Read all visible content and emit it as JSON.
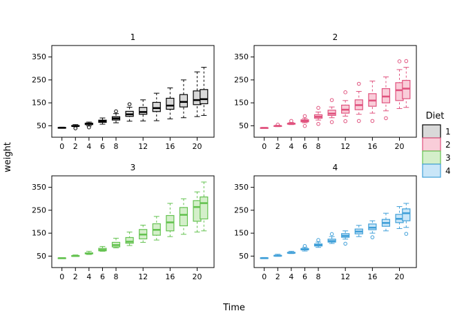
{
  "chart_data": {
    "type": "boxplot",
    "title": "",
    "xlabel": "Time",
    "ylabel": "weight",
    "x_ticks": [
      0,
      2,
      4,
      6,
      8,
      12,
      16,
      20
    ],
    "y_ticks": [
      50,
      150,
      250,
      350
    ],
    "xlim": [
      -1.5,
      22.5
    ],
    "ylim": [
      0,
      400
    ],
    "times": [
      0,
      2,
      4,
      6,
      8,
      10,
      12,
      14,
      16,
      18,
      20,
      21
    ],
    "legend": {
      "title": "Diet",
      "entries": [
        {
          "label": "1",
          "fill": "#d9d9d9",
          "stroke": "#000000"
        },
        {
          "label": "2",
          "fill": "#f9cdd9",
          "stroke": "#e0527e"
        },
        {
          "label": "3",
          "fill": "#d4efca",
          "stroke": "#64c250"
        },
        {
          "label": "4",
          "fill": "#c9e6f8",
          "stroke": "#3f9fd8"
        }
      ]
    },
    "panels": [
      {
        "label": "1",
        "diet": "1",
        "fill": "#d9d9d9",
        "stroke": "#000000",
        "boxes": [
          {
            "t": 0,
            "lo": 39,
            "q1": 40.5,
            "med": 41,
            "q3": 42.5,
            "hi": 44,
            "out": []
          },
          {
            "t": 2,
            "lo": 46,
            "q1": 48,
            "med": 49,
            "q3": 51,
            "hi": 55,
            "out": [
              39
            ]
          },
          {
            "t": 4,
            "lo": 50,
            "q1": 55,
            "med": 58,
            "q3": 61.5,
            "hi": 66,
            "out": [
              43
            ]
          },
          {
            "t": 6,
            "lo": 57,
            "q1": 65,
            "med": 70,
            "q3": 74.5,
            "hi": 84,
            "out": []
          },
          {
            "t": 8,
            "lo": 63,
            "q1": 75,
            "med": 82,
            "q3": 89.5,
            "hi": 103,
            "out": [
              113
            ]
          },
          {
            "t": 10,
            "lo": 70,
            "q1": 91,
            "med": 100,
            "q3": 113,
            "hi": 131,
            "out": [
              144
            ]
          },
          {
            "t": 12,
            "lo": 71,
            "q1": 100,
            "med": 110,
            "q3": 130,
            "hi": 163,
            "out": []
          },
          {
            "t": 14,
            "lo": 72,
            "q1": 112,
            "med": 127,
            "q3": 152,
            "hi": 192,
            "out": []
          },
          {
            "t": 16,
            "lo": 80,
            "q1": 122,
            "med": 138,
            "q3": 170,
            "hi": 215,
            "out": []
          },
          {
            "t": 18,
            "lo": 85,
            "q1": 132,
            "med": 154,
            "q3": 186,
            "hi": 250,
            "out": []
          },
          {
            "t": 20,
            "lo": 90,
            "q1": 142,
            "med": 162,
            "q3": 202,
            "hi": 285,
            "out": []
          },
          {
            "t": 21,
            "lo": 95,
            "q1": 146,
            "med": 166,
            "q3": 208,
            "hi": 305,
            "out": []
          }
        ]
      },
      {
        "label": "2",
        "diet": "2",
        "fill": "#f9cdd9",
        "stroke": "#e0527e",
        "boxes": [
          {
            "t": 0,
            "lo": 39,
            "q1": 40,
            "med": 40.5,
            "q3": 41.5,
            "hi": 43,
            "out": []
          },
          {
            "t": 2,
            "lo": 46,
            "q1": 48,
            "med": 49,
            "q3": 50,
            "hi": 52,
            "out": [
              55
            ]
          },
          {
            "t": 4,
            "lo": 55,
            "q1": 57,
            "med": 59,
            "q3": 61,
            "hi": 64,
            "out": [
              71
            ]
          },
          {
            "t": 6,
            "lo": 63,
            "q1": 67,
            "med": 71.5,
            "q3": 76,
            "hi": 82,
            "out": [
              49,
              92
            ]
          },
          {
            "t": 8,
            "lo": 75,
            "q1": 83,
            "med": 89.5,
            "q3": 98,
            "hi": 110,
            "out": [
              58,
              128
            ]
          },
          {
            "t": 10,
            "lo": 85,
            "q1": 95,
            "med": 103,
            "q3": 118,
            "hi": 132,
            "out": [
              66,
              162
            ]
          },
          {
            "t": 12,
            "lo": 92,
            "q1": 105,
            "med": 120,
            "q3": 140,
            "hi": 160,
            "out": [
              70,
              196
            ]
          },
          {
            "t": 14,
            "lo": 100,
            "q1": 120,
            "med": 140,
            "q3": 163,
            "hi": 200,
            "out": [
              71,
              233
            ]
          },
          {
            "t": 16,
            "lo": 105,
            "q1": 135,
            "med": 160,
            "q3": 190,
            "hi": 245,
            "out": [
              71
            ]
          },
          {
            "t": 18,
            "lo": 115,
            "q1": 150,
            "med": 177.5,
            "q3": 212,
            "hi": 263,
            "out": [
              83
            ]
          },
          {
            "t": 20,
            "lo": 125,
            "q1": 160,
            "med": 205,
            "q3": 238,
            "hi": 295,
            "out": [
              331
            ]
          },
          {
            "t": 21,
            "lo": 130,
            "q1": 168,
            "med": 212,
            "q3": 248,
            "hi": 305,
            "out": [
              332
            ]
          }
        ]
      },
      {
        "label": "3",
        "diet": "3",
        "fill": "#d4efca",
        "stroke": "#64c250",
        "boxes": [
          {
            "t": 0,
            "lo": 39,
            "q1": 40,
            "med": 41,
            "q3": 42,
            "hi": 43,
            "out": []
          },
          {
            "t": 2,
            "lo": 48,
            "q1": 49,
            "med": 50.5,
            "q3": 52,
            "hi": 55,
            "out": []
          },
          {
            "t": 4,
            "lo": 57,
            "q1": 60,
            "med": 62,
            "q3": 64,
            "hi": 71,
            "out": []
          },
          {
            "t": 6,
            "lo": 71,
            "q1": 73,
            "med": 77,
            "q3": 84,
            "hi": 92,
            "out": []
          },
          {
            "t": 8,
            "lo": 86,
            "q1": 90,
            "med": 98,
            "q3": 110,
            "hi": 128,
            "out": []
          },
          {
            "t": 10,
            "lo": 96,
            "q1": 106,
            "med": 113,
            "q3": 131,
            "hi": 155,
            "out": []
          },
          {
            "t": 12,
            "lo": 110,
            "q1": 125,
            "med": 144,
            "q3": 166,
            "hi": 185,
            "out": []
          },
          {
            "t": 14,
            "lo": 120,
            "q1": 141,
            "med": 164.5,
            "q3": 191,
            "hi": 223,
            "out": []
          },
          {
            "t": 16,
            "lo": 135,
            "q1": 160,
            "med": 197,
            "q3": 227,
            "hi": 280,
            "out": []
          },
          {
            "t": 18,
            "lo": 145,
            "q1": 182,
            "med": 230,
            "q3": 262,
            "hi": 300,
            "out": []
          },
          {
            "t": 20,
            "lo": 155,
            "q1": 202,
            "med": 264,
            "q3": 292,
            "hi": 330,
            "out": []
          },
          {
            "t": 21,
            "lo": 160,
            "q1": 212,
            "med": 281,
            "q3": 308,
            "hi": 373,
            "out": []
          }
        ]
      },
      {
        "label": "4",
        "diet": "4",
        "fill": "#c9e6f8",
        "stroke": "#3f9fd8",
        "boxes": [
          {
            "t": 0,
            "lo": 39,
            "q1": 40,
            "med": 41,
            "q3": 42.5,
            "hi": 44,
            "out": []
          },
          {
            "t": 2,
            "lo": 49,
            "q1": 51,
            "med": 51.5,
            "q3": 53,
            "hi": 58,
            "out": []
          },
          {
            "t": 4,
            "lo": 61,
            "q1": 63,
            "med": 64.5,
            "q3": 66,
            "hi": 71,
            "out": []
          },
          {
            "t": 6,
            "lo": 72,
            "q1": 77,
            "med": 79.5,
            "q3": 83,
            "hi": 88,
            "out": [
              94
            ]
          },
          {
            "t": 8,
            "lo": 88,
            "q1": 94,
            "med": 98,
            "q3": 103,
            "hi": 111,
            "out": [
              120
            ]
          },
          {
            "t": 10,
            "lo": 105,
            "q1": 111,
            "med": 115.5,
            "q3": 124,
            "hi": 135,
            "out": [
              146
            ]
          },
          {
            "t": 12,
            "lo": 124,
            "q1": 132,
            "med": 138.5,
            "q3": 148,
            "hi": 160,
            "out": [
              104
            ]
          },
          {
            "t": 14,
            "lo": 135,
            "q1": 147,
            "med": 157,
            "q3": 168,
            "hi": 184,
            "out": []
          },
          {
            "t": 16,
            "lo": 150,
            "q1": 165,
            "med": 174,
            "q3": 190,
            "hi": 204,
            "out": [
              132
            ]
          },
          {
            "t": 18,
            "lo": 160,
            "q1": 180,
            "med": 194.5,
            "q3": 210,
            "hi": 237,
            "out": []
          },
          {
            "t": 20,
            "lo": 170,
            "q1": 196,
            "med": 212.5,
            "q3": 232,
            "hi": 266,
            "out": []
          },
          {
            "t": 21,
            "lo": 175,
            "q1": 204,
            "med": 237,
            "q3": 256,
            "hi": 280,
            "out": [
              147
            ]
          }
        ]
      }
    ]
  }
}
